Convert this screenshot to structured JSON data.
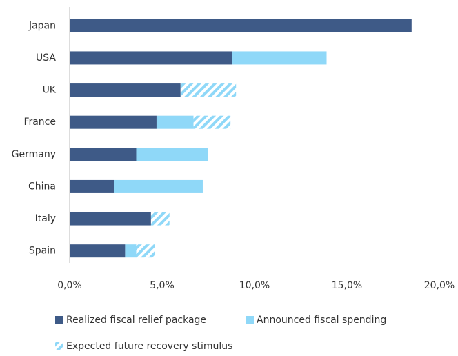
{
  "chart_data": {
    "type": "stacked-barh",
    "categories": [
      "Japan",
      "USA",
      "UK",
      "France",
      "Germany",
      "China",
      "Italy",
      "Spain"
    ],
    "series": [
      {
        "name": "Realized fiscal relief package",
        "color": "#3e5a87",
        "values": [
          18.5,
          8.8,
          6.0,
          4.7,
          3.6,
          2.4,
          4.4,
          3.0
        ]
      },
      {
        "name": "Announced fiscal spending",
        "color": "#8fd8f8",
        "values": [
          null,
          5.1,
          null,
          2.0,
          3.9,
          4.8,
          null,
          0.6
        ]
      },
      {
        "name": "Expected future recovery stimulus",
        "color": "#8fd8f8",
        "hatch": true,
        "values": [
          null,
          null,
          3.0,
          2.0,
          null,
          null,
          1.0,
          1.0
        ]
      }
    ],
    "xlim": [
      0,
      20
    ],
    "xticks": [
      {
        "value": 0,
        "label": "0,0%"
      },
      {
        "value": 5,
        "label": "5,0%"
      },
      {
        "value": 10,
        "label": "10,0%"
      },
      {
        "value": 15,
        "label": "15,0%"
      },
      {
        "value": 20,
        "label": "20,0%"
      }
    ]
  }
}
